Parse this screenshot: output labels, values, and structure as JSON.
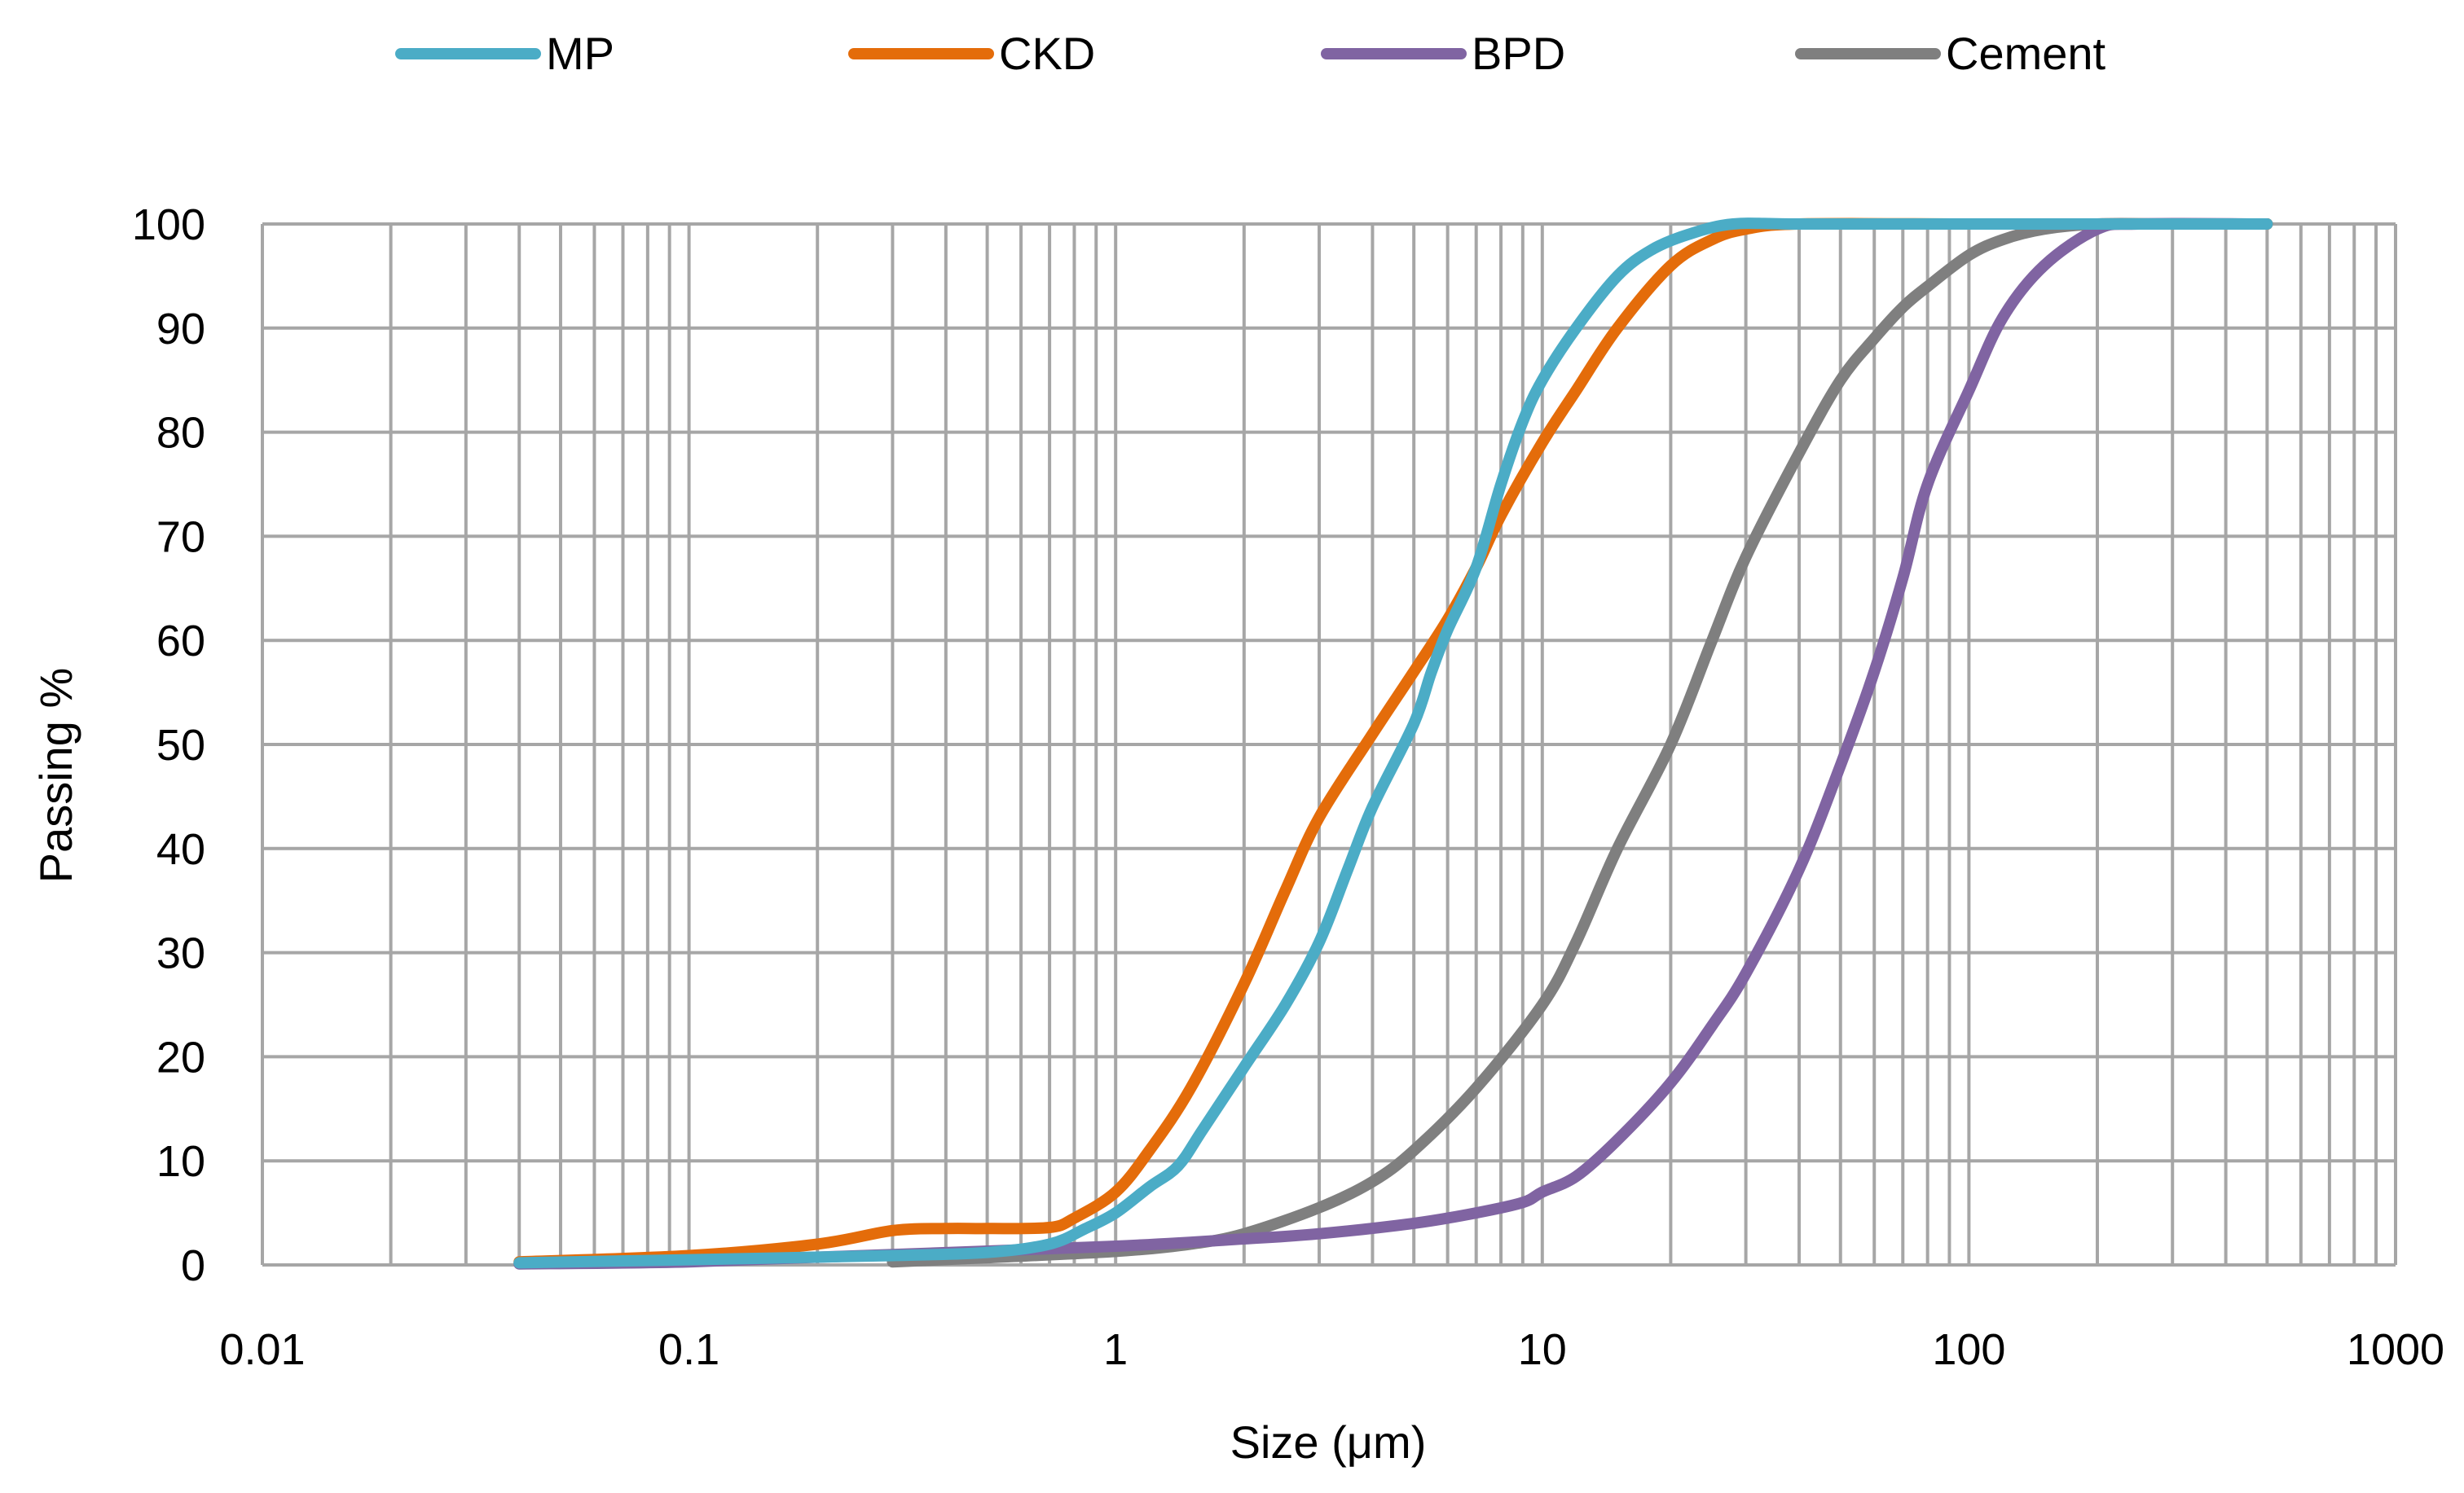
{
  "chart_data": {
    "type": "line",
    "title": "",
    "xlabel": "Size (μm)",
    "ylabel": "Passing %",
    "x_scale": "log",
    "xlim": [
      0.01,
      1000
    ],
    "ylim": [
      0,
      100
    ],
    "x_ticks": [
      0.01,
      0.1,
      1,
      10,
      100,
      1000
    ],
    "x_tick_labels": [
      "0.01",
      "0.1",
      "1",
      "10",
      "100",
      "1000"
    ],
    "y_ticks": [
      0,
      10,
      20,
      30,
      40,
      50,
      60,
      70,
      80,
      90,
      100
    ],
    "y_tick_labels": [
      "0",
      "10",
      "20",
      "30",
      "40",
      "50",
      "60",
      "70",
      "80",
      "90",
      "100"
    ],
    "grid": true,
    "legend_position": "top",
    "series": [
      {
        "name": "MP",
        "color": "#4BACC6",
        "points": [
          [
            0.04,
            0.2
          ],
          [
            0.1,
            0.5
          ],
          [
            0.3,
            0.9
          ],
          [
            0.5,
            1.2
          ],
          [
            0.7,
            2
          ],
          [
            0.85,
            3.5
          ],
          [
            1,
            5
          ],
          [
            1.2,
            7.5
          ],
          [
            1.4,
            9.5
          ],
          [
            1.6,
            13
          ],
          [
            2,
            19
          ],
          [
            2.5,
            25
          ],
          [
            3,
            31
          ],
          [
            3.5,
            38
          ],
          [
            4,
            44
          ],
          [
            5,
            52
          ],
          [
            5.5,
            57
          ],
          [
            6,
            61
          ],
          [
            7,
            67
          ],
          [
            8,
            75
          ],
          [
            9,
            81
          ],
          [
            10,
            85
          ],
          [
            12,
            90
          ],
          [
            15,
            95
          ],
          [
            18,
            97.5
          ],
          [
            22,
            99
          ],
          [
            28,
            100
          ],
          [
            40,
            100
          ],
          [
            100,
            100
          ],
          [
            200,
            100
          ],
          [
            500,
            100
          ]
        ]
      },
      {
        "name": "CKD",
        "color": "#E46C0A",
        "points": [
          [
            0.04,
            0.3
          ],
          [
            0.1,
            0.9
          ],
          [
            0.2,
            2
          ],
          [
            0.3,
            3.3
          ],
          [
            0.4,
            3.5
          ],
          [
            0.5,
            3.5
          ],
          [
            0.7,
            3.6
          ],
          [
            0.8,
            4.5
          ],
          [
            1,
            7
          ],
          [
            1.2,
            11
          ],
          [
            1.5,
            17
          ],
          [
            2,
            27
          ],
          [
            2.5,
            36
          ],
          [
            3,
            43
          ],
          [
            4,
            51
          ],
          [
            5,
            57
          ],
          [
            6,
            62
          ],
          [
            7,
            67
          ],
          [
            8,
            72
          ],
          [
            10,
            79
          ],
          [
            12,
            84
          ],
          [
            15,
            90
          ],
          [
            20,
            96
          ],
          [
            25,
            98.5
          ],
          [
            30,
            99.5
          ],
          [
            40,
            100
          ],
          [
            100,
            100
          ],
          [
            200,
            100
          ],
          [
            500,
            100
          ]
        ]
      },
      {
        "name": "BPD",
        "color": "#8064A2",
        "points": [
          [
            0.04,
            0.1
          ],
          [
            0.1,
            0.3
          ],
          [
            0.3,
            1
          ],
          [
            1,
            1.8
          ],
          [
            2,
            2.5
          ],
          [
            3,
            3
          ],
          [
            5,
            4
          ],
          [
            7,
            5
          ],
          [
            9,
            6
          ],
          [
            10,
            7
          ],
          [
            12,
            8.5
          ],
          [
            15,
            12
          ],
          [
            20,
            17.5
          ],
          [
            25,
            23
          ],
          [
            30,
            28
          ],
          [
            40,
            38
          ],
          [
            50,
            48
          ],
          [
            60,
            57
          ],
          [
            70,
            66
          ],
          [
            80,
            75
          ],
          [
            100,
            84
          ],
          [
            120,
            91
          ],
          [
            150,
            96
          ],
          [
            200,
            99.5
          ],
          [
            250,
            100
          ],
          [
            500,
            100
          ]
        ]
      },
      {
        "name": "Cement",
        "color": "#7F7F7F",
        "points": [
          [
            0.3,
            0.3
          ],
          [
            0.5,
            0.7
          ],
          [
            1,
            1.3
          ],
          [
            1.5,
            2
          ],
          [
            2,
            3
          ],
          [
            3,
            5.5
          ],
          [
            4,
            8
          ],
          [
            5,
            11
          ],
          [
            7,
            17
          ],
          [
            10,
            25
          ],
          [
            12,
            31
          ],
          [
            15,
            40
          ],
          [
            20,
            50
          ],
          [
            25,
            60
          ],
          [
            30,
            68
          ],
          [
            40,
            78
          ],
          [
            50,
            85
          ],
          [
            60,
            89
          ],
          [
            70,
            92
          ],
          [
            80,
            94
          ],
          [
            100,
            97
          ],
          [
            120,
            98.5
          ],
          [
            150,
            99.5
          ],
          [
            200,
            100
          ],
          [
            300,
            100
          ],
          [
            500,
            100
          ]
        ]
      }
    ]
  }
}
